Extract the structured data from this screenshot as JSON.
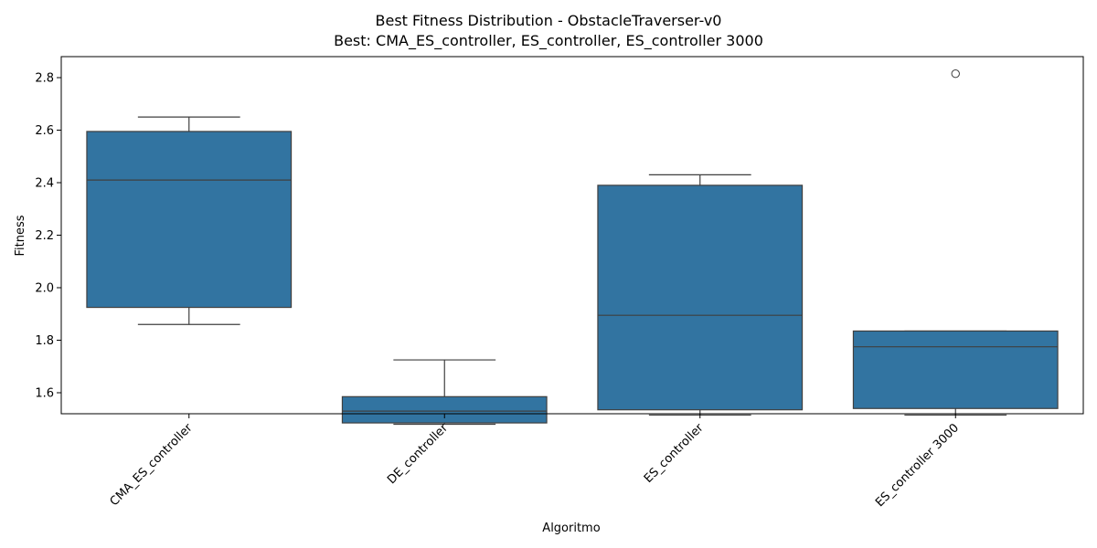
{
  "chart_data": {
    "type": "box",
    "title": "Best Fitness Distribution - ObstacleTraverser-v0",
    "subtitle": "Best: CMA_ES_controller, ES_controller, ES_controller 3000",
    "xlabel": "Algoritmo",
    "ylabel": "Fitness",
    "ylim": [
      1.52,
      2.88
    ],
    "yticks": [
      "1.6",
      "1.8",
      "2.0",
      "2.2",
      "2.4",
      "2.6",
      "2.8"
    ],
    "grid": false,
    "color": "#3274a1",
    "edge_color": "#3f3f3f",
    "categories": [
      "CMA_ES_controller",
      "DE_controller",
      "ES_controller",
      "ES_controller 3000"
    ],
    "boxes": [
      {
        "whisker_low": 1.86,
        "q1": 1.925,
        "median": 2.41,
        "q3": 2.595,
        "whisker_high": 2.65,
        "outliers": []
      },
      {
        "whisker_low": 1.48,
        "q1": 1.485,
        "median": 1.53,
        "q3": 1.585,
        "whisker_high": 1.725,
        "outliers": []
      },
      {
        "whisker_low": 1.515,
        "q1": 1.535,
        "median": 1.895,
        "q3": 2.39,
        "whisker_high": 2.43,
        "outliers": []
      },
      {
        "whisker_low": 1.515,
        "q1": 1.54,
        "median": 1.775,
        "q3": 1.835,
        "whisker_high": 1.835,
        "outliers": [
          2.815
        ]
      }
    ]
  }
}
